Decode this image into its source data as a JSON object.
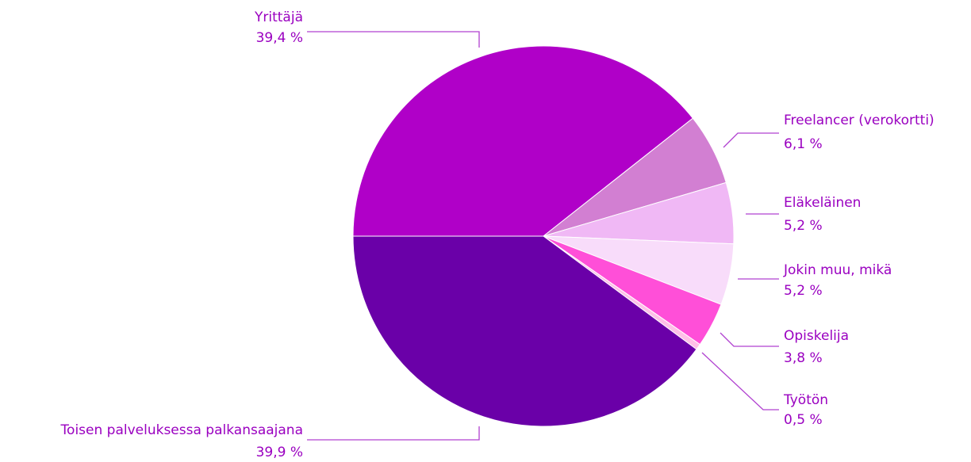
{
  "chart_data": {
    "type": "pie",
    "categories": [
      "Yrittäjä",
      "Freelancer (verokortti)",
      "Eläkeläinen",
      "Jokin muu, mikä",
      "Opiskelija",
      "Työtön",
      "Toisen palveluksessa palkansaajana"
    ],
    "values": [
      39.4,
      6.1,
      5.2,
      5.2,
      3.8,
      0.5,
      39.9
    ],
    "value_labels": [
      "39,4 %",
      "6,1 %",
      "5,2 %",
      "5,2 %",
      "3,8 %",
      "0,5 %",
      "39,9 %"
    ],
    "colors": [
      "#b000c8",
      "#d27fd2",
      "#f0b8f5",
      "#f8dcfa",
      "#ff4fd8",
      "#ffc0e8",
      "#6a00a8"
    ]
  }
}
